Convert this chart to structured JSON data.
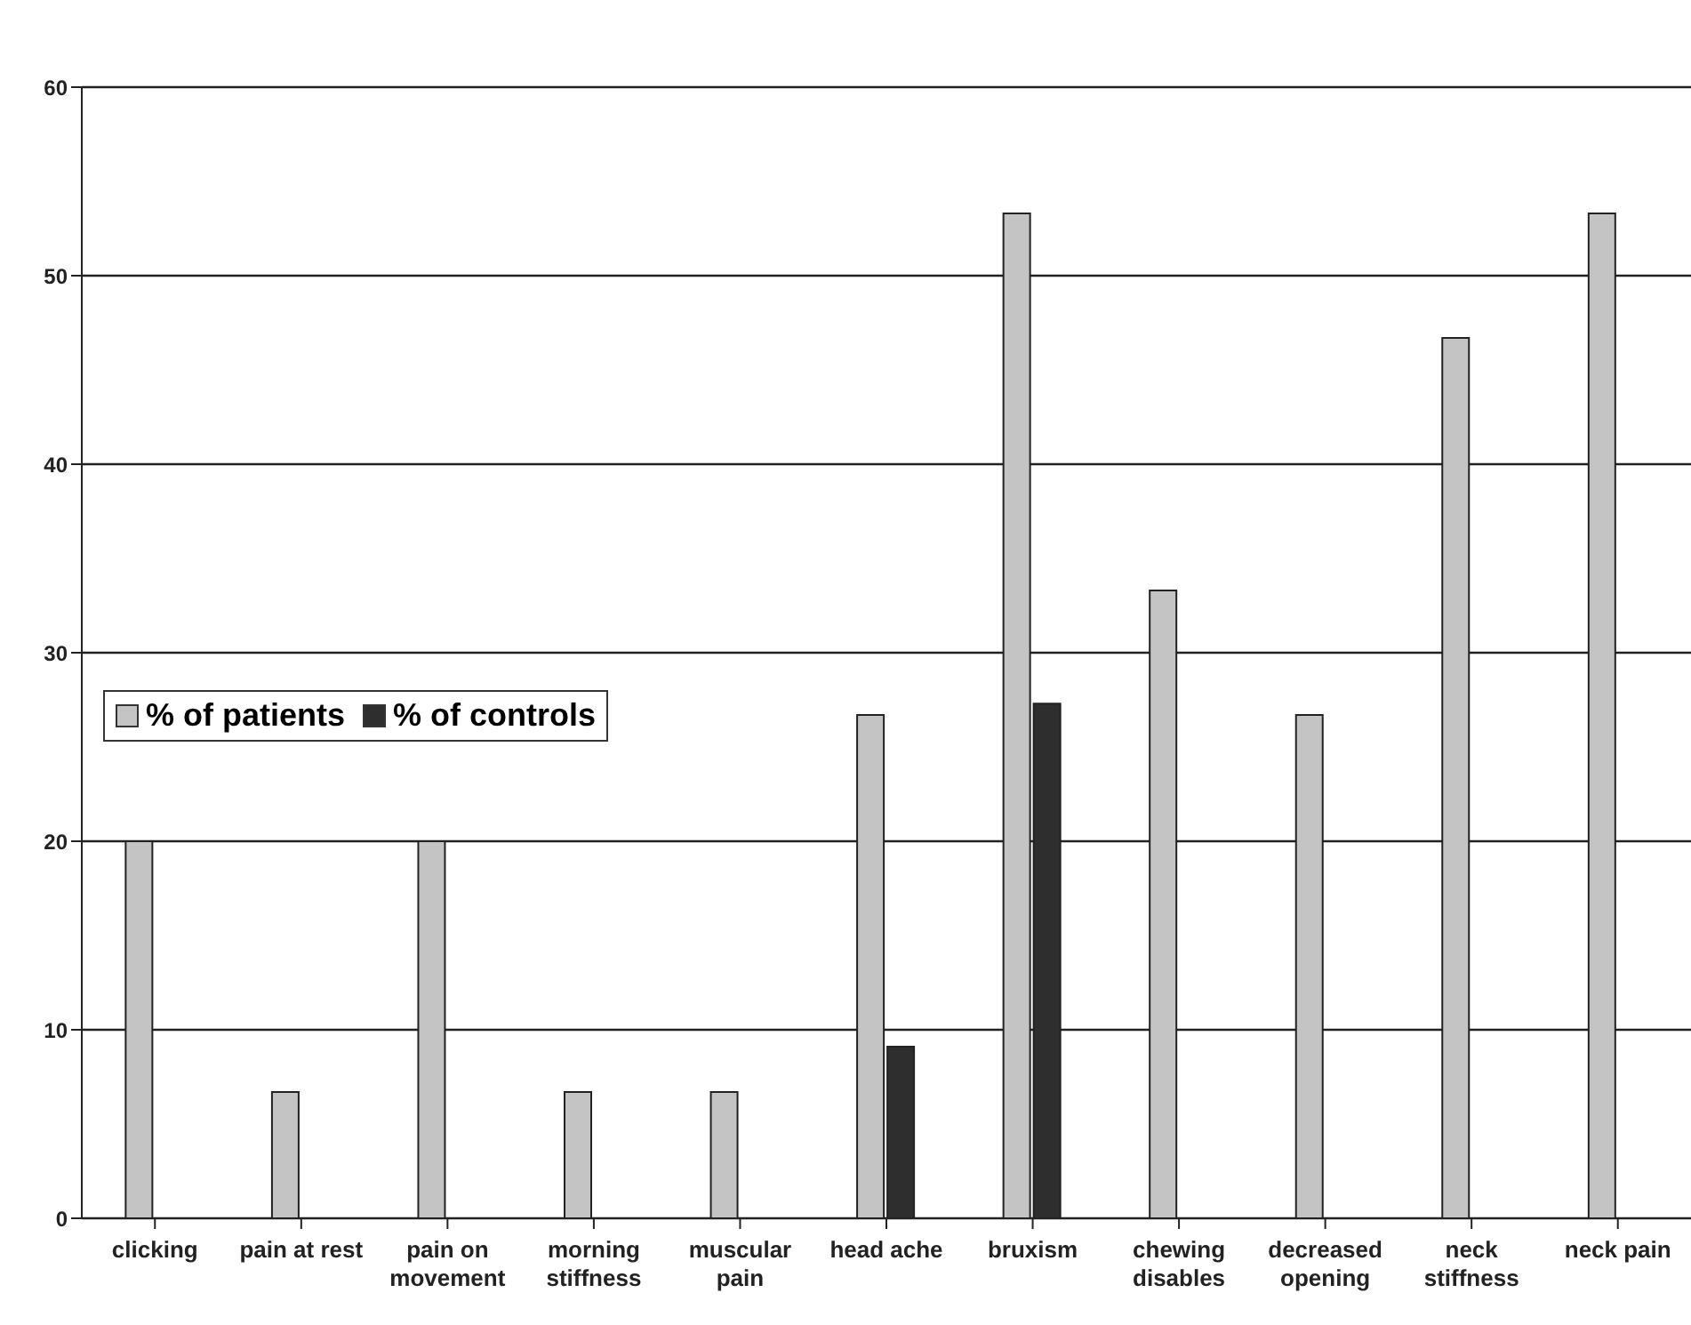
{
  "chart_data": {
    "type": "bar",
    "categories": [
      "clicking",
      "pain at rest",
      "pain on movement",
      "morning stiffness",
      "muscular pain",
      "head ache",
      "bruxism",
      "chewing disables",
      "decreased opening",
      "neck stiffness",
      "neck pain"
    ],
    "series": [
      {
        "name": "% of patients",
        "color": "#c4c4c4",
        "values": [
          20,
          6.7,
          20,
          6.7,
          6.7,
          26.7,
          53.3,
          33.3,
          26.7,
          46.7,
          53.3
        ]
      },
      {
        "name": "% of controls",
        "color": "#2e2e2e",
        "values": [
          0,
          0,
          0,
          0,
          0,
          9.1,
          27.3,
          0,
          0,
          0,
          0
        ]
      }
    ],
    "ylim": [
      0,
      60
    ],
    "yticks": [
      0,
      10,
      20,
      30,
      40,
      50,
      60
    ],
    "grid": "y",
    "legend": "left"
  }
}
